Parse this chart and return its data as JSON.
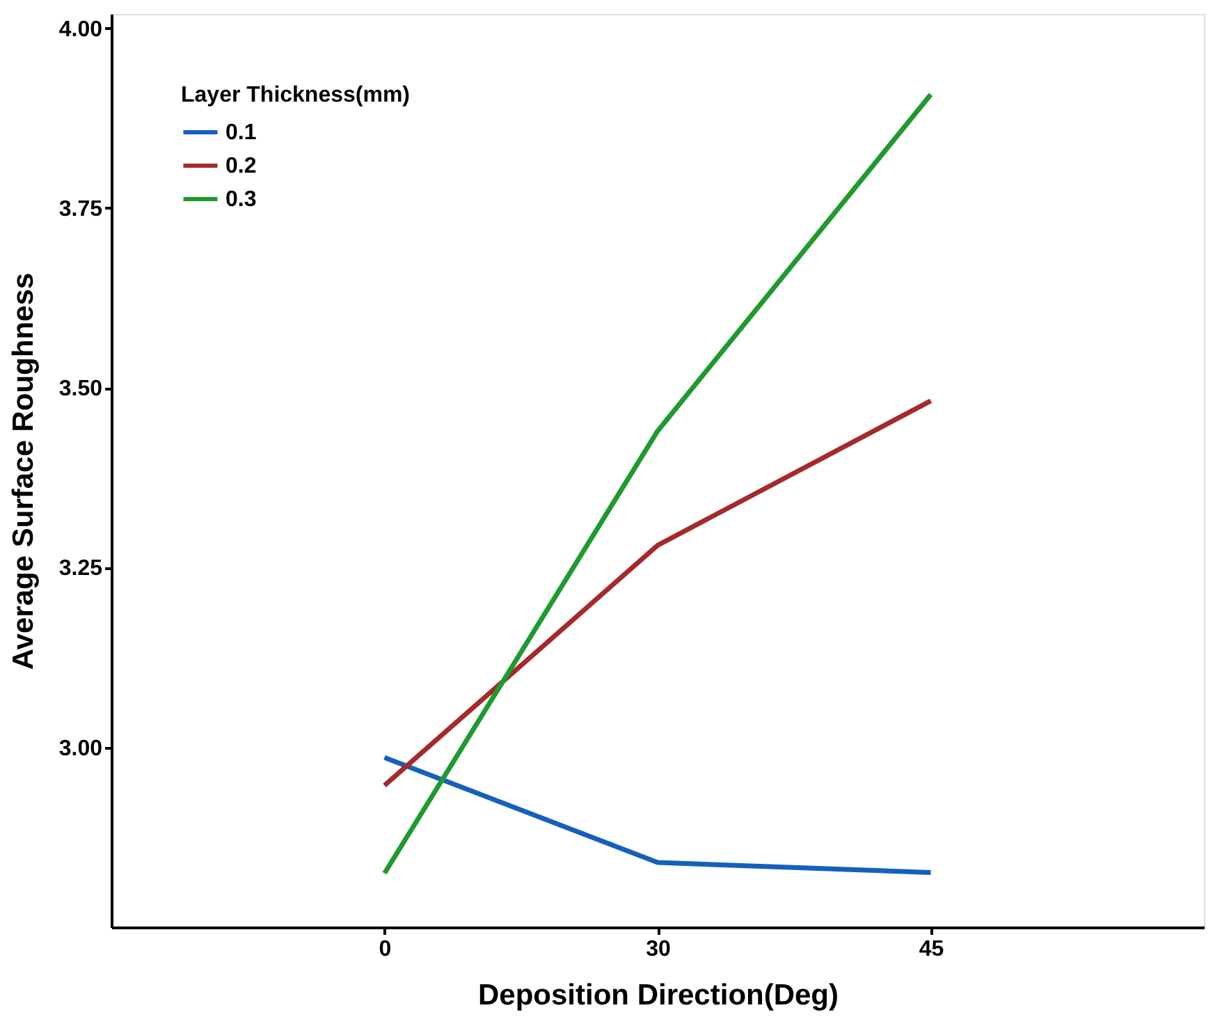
{
  "chart_data": {
    "type": "line",
    "xlabel": "Deposition Direction(Deg)",
    "ylabel": "Average Surface Roughness",
    "legend_title": "Layer Thickness(mm)",
    "categories": [
      "0",
      "30",
      "45"
    ],
    "series": [
      {
        "name": "0.1",
        "color": "#1560bd",
        "values": [
          2.986,
          2.84,
          2.826
        ]
      },
      {
        "name": "0.2",
        "color": "#a52a2a",
        "values": [
          2.947,
          3.281,
          3.482
        ]
      },
      {
        "name": "0.3",
        "color": "#1e9a2e",
        "values": [
          2.825,
          3.44,
          3.908
        ]
      }
    ],
    "ylim": [
      2.75,
      4.02
    ],
    "yticks": [
      {
        "value": 3.0,
        "label": "3.00"
      },
      {
        "value": 3.25,
        "label": "3.25"
      },
      {
        "value": 3.5,
        "label": "3.50"
      },
      {
        "value": 3.75,
        "label": "3.75"
      },
      {
        "value": 4.0,
        "label": "4.00"
      }
    ],
    "grid": false,
    "legend": "top left",
    "line_style": "solid",
    "marker": "none"
  }
}
